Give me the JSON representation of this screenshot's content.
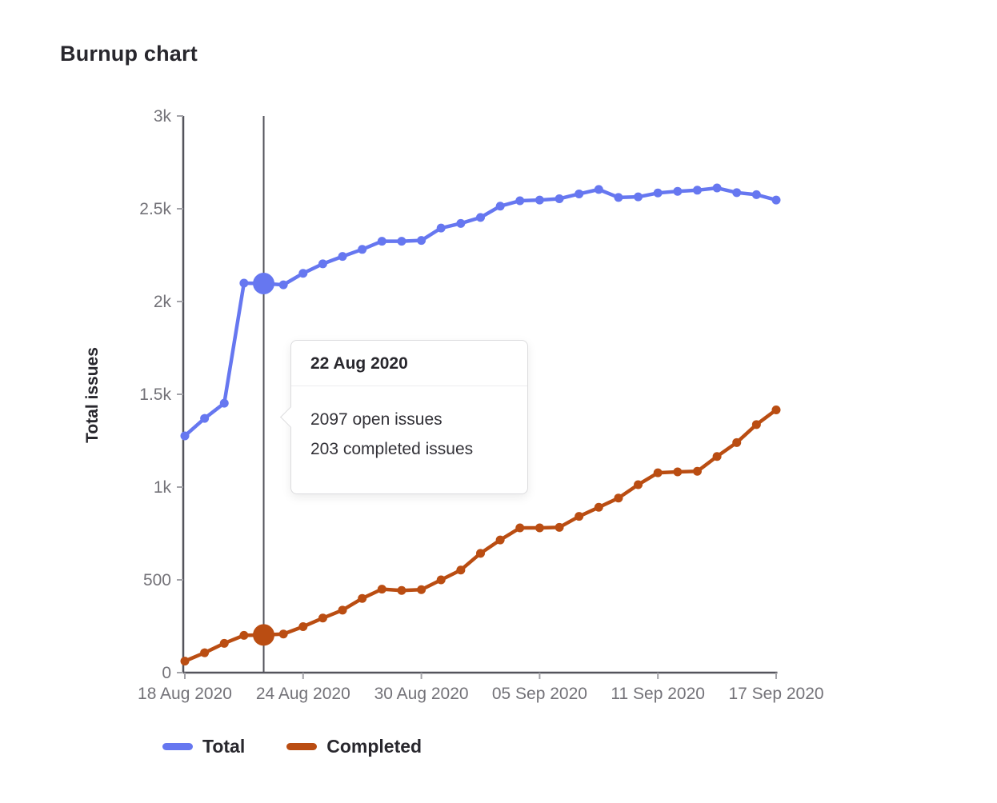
{
  "page": {
    "title": "Burnup chart"
  },
  "colors": {
    "total": "#6677f0",
    "completed": "#ba4d12",
    "axis": "#54545c",
    "tick": "#a3a3a8",
    "tick_label": "#737278",
    "dark_text": "#28272d",
    "highlight_line": "#54545c"
  },
  "tooltip": {
    "date": "22 Aug 2020",
    "lines": [
      "2097 open issues",
      "203 completed issues"
    ]
  },
  "legend": [
    {
      "label": "Total",
      "color": "#6677f0"
    },
    {
      "label": "Completed",
      "color": "#ba4d12"
    }
  ],
  "chart_data": {
    "type": "line",
    "title": "Burnup chart",
    "xlabel": "",
    "ylabel": "Total issues",
    "ylim": [
      0,
      3000
    ],
    "grid": false,
    "legend_position": "bottom",
    "y_ticks": {
      "values": [
        0,
        500,
        1000,
        1500,
        2000,
        2500,
        3000
      ],
      "labels": [
        "0",
        "500",
        "1k",
        "1.5k",
        "2k",
        "2.5k",
        "3k"
      ]
    },
    "x_tick_indices": [
      0,
      6,
      12,
      18,
      24,
      30
    ],
    "x_tick_labels": [
      "18 Aug 2020",
      "24 Aug 2020",
      "30 Aug 2020",
      "05 Sep 2020",
      "11 Sep 2020",
      "17 Sep 2020"
    ],
    "x": [
      "18 Aug 2020",
      "19 Aug 2020",
      "20 Aug 2020",
      "21 Aug 2020",
      "22 Aug 2020",
      "23 Aug 2020",
      "24 Aug 2020",
      "25 Aug 2020",
      "26 Aug 2020",
      "27 Aug 2020",
      "28 Aug 2020",
      "29 Aug 2020",
      "30 Aug 2020",
      "31 Aug 2020",
      "01 Sep 2020",
      "02 Sep 2020",
      "03 Sep 2020",
      "04 Sep 2020",
      "05 Sep 2020",
      "06 Sep 2020",
      "07 Sep 2020",
      "08 Sep 2020",
      "09 Sep 2020",
      "10 Sep 2020",
      "11 Sep 2020",
      "12 Sep 2020",
      "13 Sep 2020",
      "14 Sep 2020",
      "15 Sep 2020",
      "16 Sep 2020",
      "17 Sep 2020"
    ],
    "series": [
      {
        "name": "Total",
        "color": "#6677f0",
        "values": [
          1276,
          1370,
          1452,
          2099,
          2097,
          2090,
          2152,
          2203,
          2243,
          2281,
          2325,
          2325,
          2329,
          2396,
          2421,
          2453,
          2514,
          2543,
          2547,
          2554,
          2580,
          2604,
          2561,
          2564,
          2585,
          2594,
          2600,
          2612,
          2587,
          2576,
          2547
        ]
      },
      {
        "name": "Completed",
        "color": "#ba4d12",
        "values": [
          62,
          107,
          158,
          201,
          203,
          208,
          248,
          294,
          337,
          400,
          450,
          443,
          447,
          500,
          553,
          643,
          715,
          780,
          780,
          783,
          842,
          891,
          941,
          1013,
          1077,
          1082,
          1085,
          1165,
          1240,
          1337,
          1416
        ]
      }
    ],
    "highlight": {
      "x_index": 4,
      "date": "22 Aug 2020",
      "open_issues": 2097,
      "completed_issues": 203
    }
  }
}
